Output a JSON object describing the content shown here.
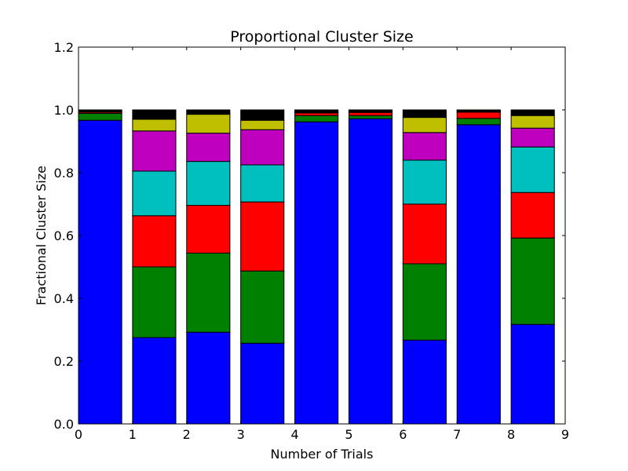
{
  "chart_data": {
    "type": "bar",
    "stacked": true,
    "title": "Proportional Cluster Size",
    "xlabel": "Number of Trials",
    "ylabel": "Fractional Cluster Size",
    "xlim": [
      0,
      9
    ],
    "ylim": [
      0,
      1.2
    ],
    "xticks": [
      "0",
      "1",
      "2",
      "3",
      "4",
      "5",
      "6",
      "7",
      "8",
      "9"
    ],
    "yticks": [
      "0.0",
      "0.2",
      "0.4",
      "0.6",
      "0.8",
      "1.0",
      "1.2"
    ],
    "grid": false,
    "legend": "none",
    "bar_positions": [
      0,
      1,
      2,
      3,
      4,
      5,
      6,
      7,
      8
    ],
    "bar_width": 0.8,
    "series": [
      {
        "color": "#0000ff",
        "values": [
          0.967,
          0.275,
          0.292,
          0.257,
          0.962,
          0.972,
          0.267,
          0.953,
          0.317
        ]
      },
      {
        "color": "#008000",
        "values": [
          0.022,
          0.225,
          0.252,
          0.23,
          0.02,
          0.01,
          0.243,
          0.02,
          0.275
        ]
      },
      {
        "color": "#ff0000",
        "values": [
          0.004,
          0.163,
          0.152,
          0.22,
          0.008,
          0.01,
          0.19,
          0.02,
          0.145
        ]
      },
      {
        "color": "#00bfbf",
        "values": [
          0.001,
          0.142,
          0.14,
          0.118,
          0.002,
          0.001,
          0.14,
          0.001,
          0.145
        ]
      },
      {
        "color": "#bf00bf",
        "values": [
          0.002,
          0.128,
          0.09,
          0.112,
          0.002,
          0.002,
          0.088,
          0.002,
          0.06
        ]
      },
      {
        "color": "#bfbf00",
        "values": [
          0.002,
          0.037,
          0.06,
          0.03,
          0.002,
          0.002,
          0.048,
          0.002,
          0.04
        ]
      },
      {
        "color": "#000000",
        "values": [
          0.002,
          0.03,
          0.014,
          0.033,
          0.004,
          0.003,
          0.024,
          0.002,
          0.018
        ]
      }
    ]
  }
}
